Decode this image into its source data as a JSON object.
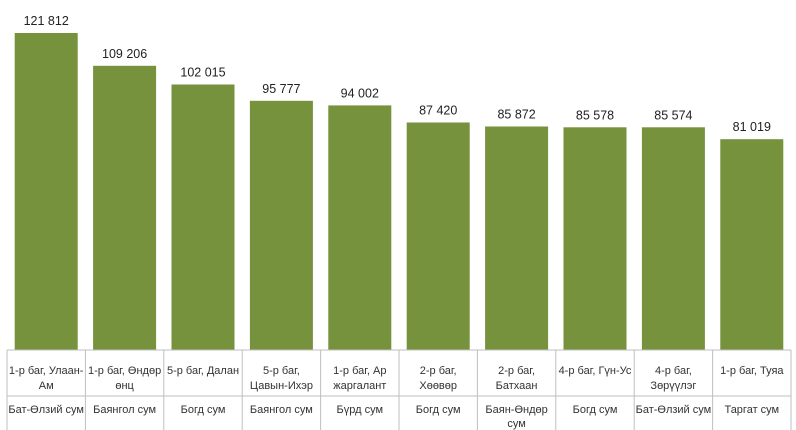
{
  "chart_data": {
    "type": "bar",
    "title": "",
    "xlabel": "",
    "ylabel": "",
    "bar_color": "#76923c",
    "ylim": [
      0,
      125000
    ],
    "categories": [
      {
        "bag": [
          "1-р баг, Улаан-",
          "Ам"
        ],
        "sum": [
          "Бат-Өлзий сум"
        ]
      },
      {
        "bag": [
          "1-р баг, Өндөр",
          "өнц"
        ],
        "sum": [
          "Баянгол сум"
        ]
      },
      {
        "bag": [
          "5-р баг, Далан"
        ],
        "sum": [
          "Богд сум"
        ]
      },
      {
        "bag": [
          "5-р баг,",
          "Цавын-Ихэр"
        ],
        "sum": [
          "Баянгол сум"
        ]
      },
      {
        "bag": [
          "1-р баг, Ар",
          "жаргалант"
        ],
        "sum": [
          "Бүрд сум"
        ]
      },
      {
        "bag": [
          "2-р баг,",
          "Хөөвөр"
        ],
        "sum": [
          "Богд сум"
        ]
      },
      {
        "bag": [
          "2-р баг,",
          "Батхаан"
        ],
        "sum": [
          "Баян-Өндөр",
          "сум"
        ]
      },
      {
        "bag": [
          "4-р баг, Гүн-Ус"
        ],
        "sum": [
          "Богд сум"
        ]
      },
      {
        "bag": [
          "4-р баг,",
          "Зөрүүлэг"
        ],
        "sum": [
          "Бат-Өлзий сум"
        ]
      },
      {
        "bag": [
          "1-р баг, Туяа"
        ],
        "sum": [
          "Таргат сум"
        ]
      }
    ],
    "values": [
      121812,
      109206,
      102015,
      95777,
      94002,
      87420,
      85872,
      85578,
      85574,
      81019
    ],
    "value_labels": [
      "121 812",
      "109 206",
      "102 015",
      "95 777",
      "94 002",
      "87 420",
      "85 872",
      "85 578",
      "85 574",
      "81 019"
    ]
  }
}
